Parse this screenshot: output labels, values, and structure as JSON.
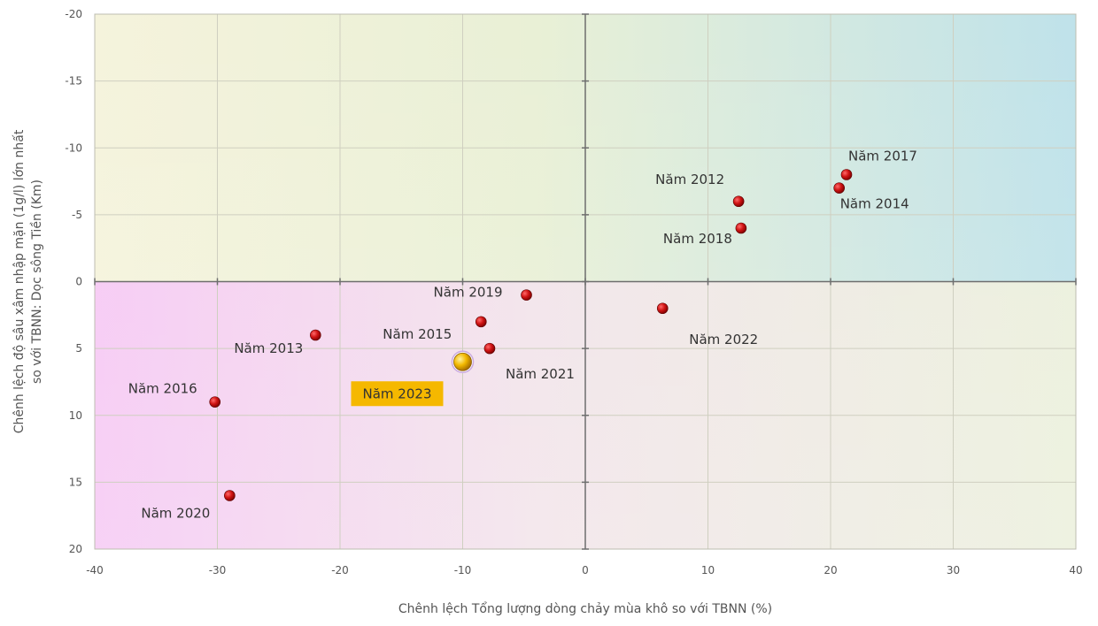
{
  "chart_data": {
    "type": "scatter",
    "title": "",
    "xlabel": "Chênh lệch Tổng lượng dòng chảy mùa khô so với TBNN (%)",
    "ylabel_lines": [
      "Chênh lệch độ sâu xâm nhập mặn (1g/l) lớn nhất",
      "so với TBNN: Dọc sông Tiền (Km)"
    ],
    "xlim": [
      -40,
      40
    ],
    "ylim": [
      -20,
      20
    ],
    "y_inverted": true,
    "grid": true,
    "x_ticks": [
      -40,
      -30,
      -20,
      -10,
      0,
      10,
      20,
      30,
      40
    ],
    "y_ticks": [
      -20,
      -15,
      -10,
      -5,
      0,
      5,
      10,
      15,
      20
    ],
    "highlight_color": "#f5b800",
    "point_color": "#cc1111",
    "points": [
      {
        "label": "Năm 2017",
        "x": 21.3,
        "y": -8,
        "label_pos": "above-right"
      },
      {
        "label": "Năm 2014",
        "x": 20.7,
        "y": -7,
        "label_pos": "below-right"
      },
      {
        "label": "Năm 2012",
        "x": 12.5,
        "y": -6,
        "label_pos": "above-left"
      },
      {
        "label": "Năm 2018",
        "x": 12.7,
        "y": -4,
        "label_pos": "below-left"
      },
      {
        "label": "Năm 2019",
        "x": -4.8,
        "y": 1,
        "label_pos": "left"
      },
      {
        "label": "Năm 2022",
        "x": 6.3,
        "y": 2,
        "label_pos": "below-right"
      },
      {
        "label": "Năm 2015",
        "x": -8.5,
        "y": 3,
        "label_pos": "below-left"
      },
      {
        "label": "Năm 2013",
        "x": -22.0,
        "y": 4,
        "label_pos": "below-left"
      },
      {
        "label": "Năm 2021",
        "x": -7.8,
        "y": 5,
        "label_pos": "below-right"
      },
      {
        "label": "Năm 2023",
        "x": -10.0,
        "y": 6,
        "label_pos": "below-left",
        "highlight": true
      },
      {
        "label": "Năm 2016",
        "x": -30.2,
        "y": 9,
        "label_pos": "above-left"
      },
      {
        "label": "Năm 2020",
        "x": -29.0,
        "y": 16,
        "label_pos": "below-left"
      }
    ]
  }
}
